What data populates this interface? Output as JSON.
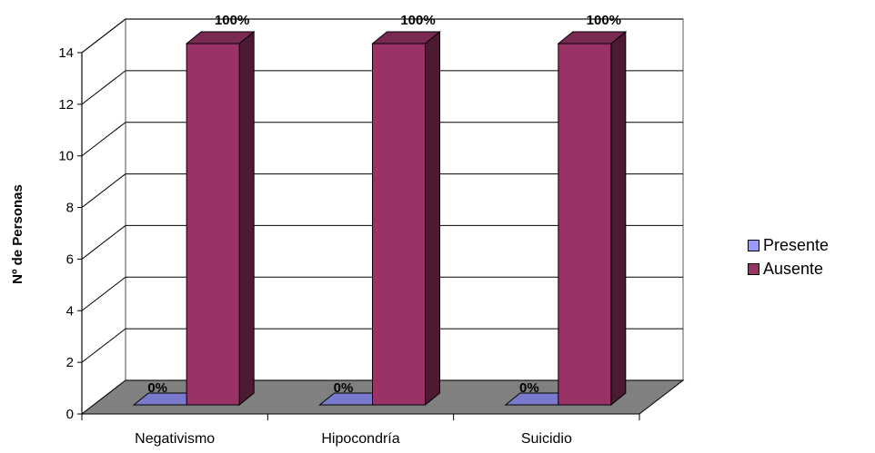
{
  "chart_data": {
    "type": "bar",
    "title": "",
    "xlabel": "",
    "ylabel": "Nº de Personas",
    "ylim": [
      0,
      14
    ],
    "yticks": [
      0,
      2,
      4,
      6,
      8,
      10,
      12,
      14
    ],
    "grid": true,
    "legend_position": "right",
    "categories": [
      "Negativismo",
      "Hipocondría",
      "Suicidio"
    ],
    "series": [
      {
        "name": "Presente",
        "color": "#9999ff",
        "values": [
          0,
          0,
          0
        ],
        "labels": [
          "0%",
          "0%",
          "0%"
        ]
      },
      {
        "name": "Ausente",
        "color": "#993366",
        "values": [
          14,
          14,
          14
        ],
        "labels": [
          "100%",
          "100%",
          "100%"
        ]
      }
    ]
  }
}
